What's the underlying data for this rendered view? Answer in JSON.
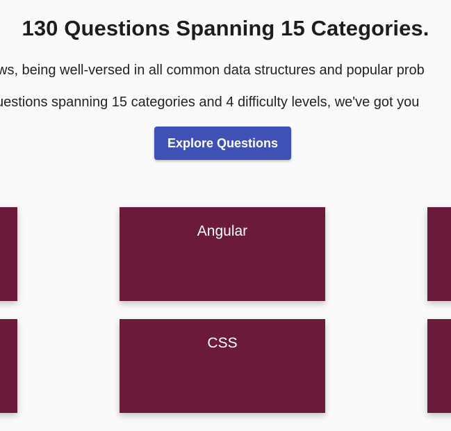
{
  "header": {
    "title": "130 Questions Spanning 15 Categories.",
    "line_1": "ws, being well-versed in all common data structures and popular prob",
    "line_2": "uestions spanning 15 categories and 4 difficulty levels, we've got you"
  },
  "cta": {
    "label": "Explore Questions",
    "color": "#3f51b5"
  },
  "categories": {
    "card_color": "#6b1a3b",
    "visible": [
      {
        "label": "Angular"
      },
      {
        "label": "CSS"
      }
    ]
  }
}
